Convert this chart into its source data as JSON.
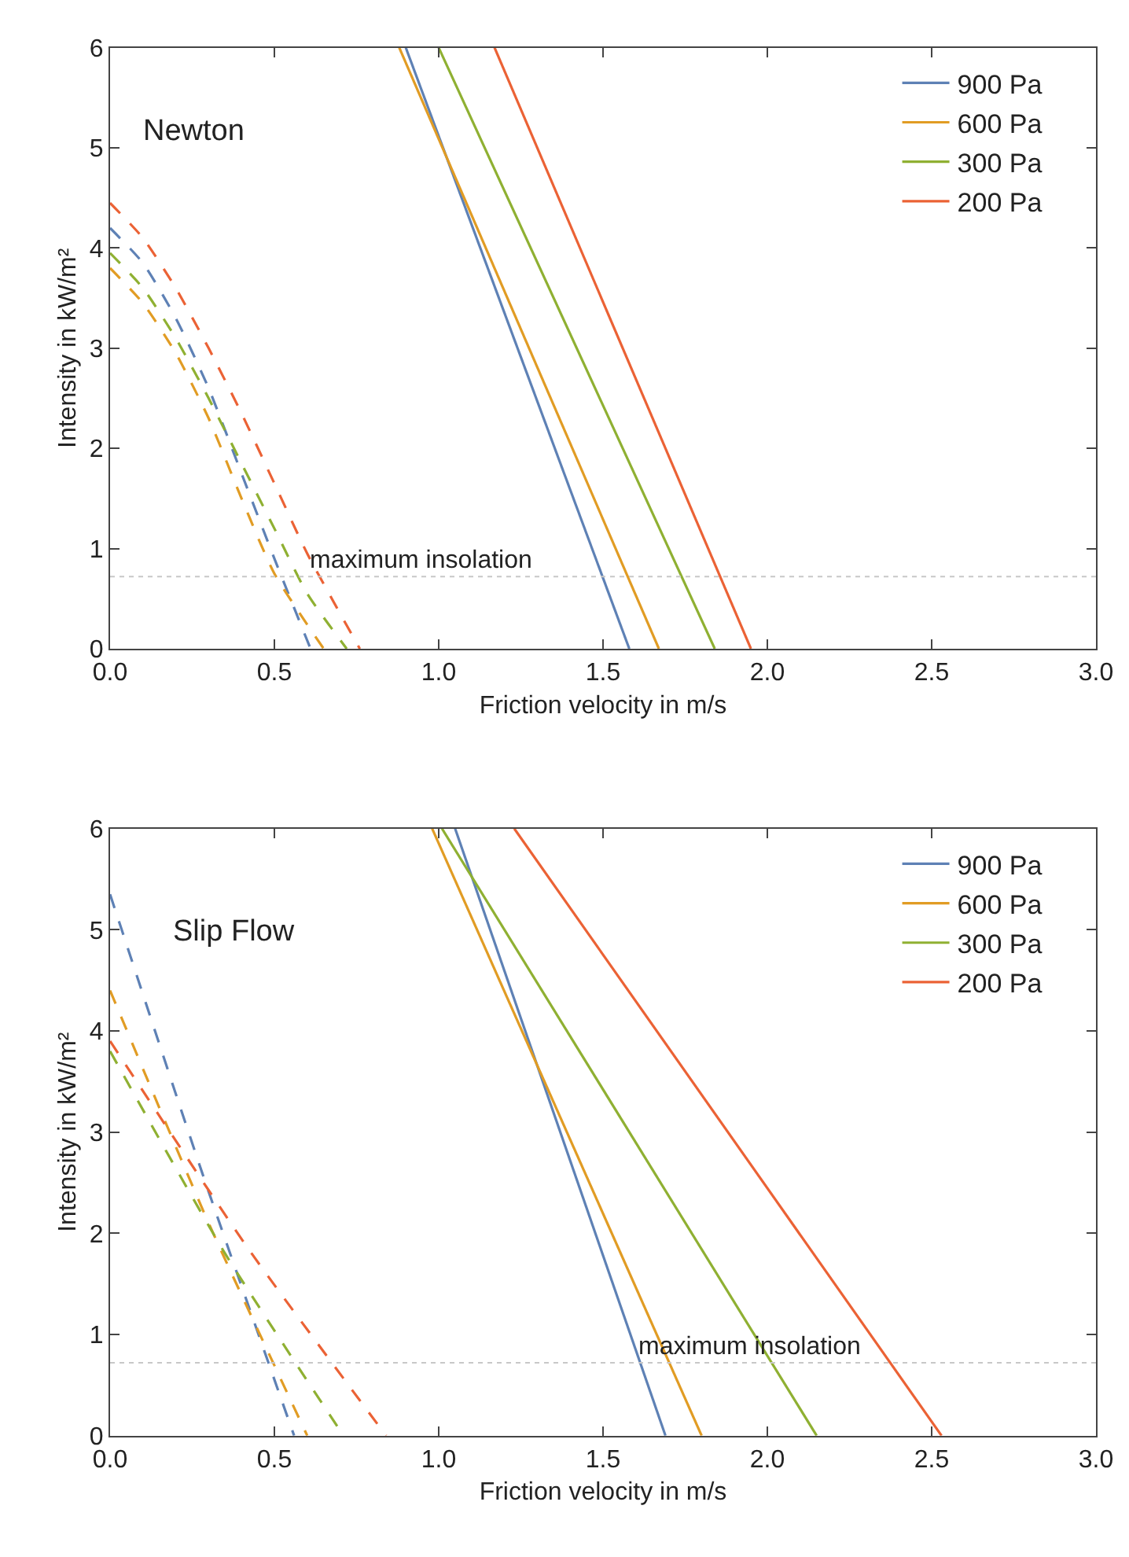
{
  "chart_data": [
    {
      "type": "line",
      "xlabel": "Friction velocity in m/s",
      "ylabel": "Intensity in kW/m²",
      "annotations": [
        "Newton",
        {
          "text": "maximum insolation",
          "x": 0.6,
          "y": 0.72
        }
      ],
      "xlim": [
        0,
        3
      ],
      "ylim": [
        0,
        6
      ],
      "xticks": [
        {
          "value": 0,
          "label": "0.0"
        },
        {
          "value": 0.5,
          "label": "0.5"
        },
        {
          "value": 1,
          "label": "1.0"
        },
        {
          "value": 1.5,
          "label": "1.5"
        },
        {
          "value": 2,
          "label": "2.0"
        },
        {
          "value": 2.5,
          "label": "2.5"
        },
        {
          "value": 3,
          "label": "3.0"
        }
      ],
      "yticks": [
        0,
        1,
        2,
        3,
        4,
        5,
        6
      ],
      "legend": "top right",
      "marker": "none",
      "ref_lines": [
        {
          "axis": "y",
          "value": 0.72,
          "color": "#c8c8c8",
          "line_style": "dotted"
        }
      ],
      "series": [
        {
          "name": "900 Pa",
          "color": "#5e81b5",
          "line_style": "solid",
          "x": [
            0.9,
            1.58
          ],
          "values": [
            6,
            0
          ]
        },
        {
          "name": "600 Pa",
          "color": "#e19c24",
          "line_style": "solid",
          "x": [
            0.88,
            1.67
          ],
          "values": [
            6,
            0
          ]
        },
        {
          "name": "300 Pa",
          "color": "#8fb032",
          "line_style": "solid",
          "x": [
            1.0,
            1.84
          ],
          "values": [
            6,
            0
          ]
        },
        {
          "name": "200 Pa",
          "color": "#eb6235",
          "line_style": "solid",
          "x": [
            1.17,
            1.95
          ],
          "values": [
            6,
            0
          ]
        },
        {
          "color": "#5e81b5",
          "line_style": "dashed",
          "x": [
            0,
            0.1,
            0.2,
            0.3,
            0.4,
            0.5,
            0.61
          ],
          "values": [
            4.2,
            3.85,
            3.3,
            2.6,
            1.75,
            0.9,
            0
          ]
        },
        {
          "color": "#e19c24",
          "line_style": "dashed",
          "x": [
            0,
            0.1,
            0.2,
            0.3,
            0.4,
            0.5,
            0.65
          ],
          "values": [
            3.8,
            3.45,
            2.95,
            2.3,
            1.5,
            0.75,
            0
          ]
        },
        {
          "color": "#8fb032",
          "line_style": "dashed",
          "x": [
            0,
            0.1,
            0.2,
            0.3,
            0.4,
            0.5,
            0.6,
            0.72
          ],
          "values": [
            3.95,
            3.6,
            3.1,
            2.5,
            1.85,
            1.2,
            0.55,
            0
          ]
        },
        {
          "color": "#eb6235",
          "line_style": "dashed",
          "x": [
            0,
            0.1,
            0.2,
            0.3,
            0.4,
            0.5,
            0.6,
            0.76
          ],
          "values": [
            4.45,
            4.1,
            3.6,
            3.0,
            2.35,
            1.65,
            0.95,
            0
          ]
        }
      ]
    },
    {
      "type": "line",
      "xlabel": "Friction velocity in m/s",
      "ylabel": "Intensity in kW/m²",
      "annotations": [
        "Slip Flow",
        {
          "text": "maximum insolation",
          "x": 1.6,
          "y": 0.72
        }
      ],
      "xlim": [
        0,
        3
      ],
      "ylim": [
        0,
        6
      ],
      "xticks": [
        {
          "value": 0,
          "label": "0.0"
        },
        {
          "value": 0.5,
          "label": "0.5"
        },
        {
          "value": 1,
          "label": "1.0"
        },
        {
          "value": 1.5,
          "label": "1.5"
        },
        {
          "value": 2,
          "label": "2.0"
        },
        {
          "value": 2.5,
          "label": "2.5"
        },
        {
          "value": 3,
          "label": "3.0"
        }
      ],
      "yticks": [
        0,
        1,
        2,
        3,
        4,
        5,
        6
      ],
      "legend": "top right",
      "marker": "none",
      "ref_lines": [
        {
          "axis": "y",
          "value": 0.72,
          "color": "#c8c8c8",
          "line_style": "dotted"
        }
      ],
      "series": [
        {
          "name": "900 Pa",
          "color": "#5e81b5",
          "line_style": "solid",
          "x": [
            1.05,
            1.69
          ],
          "values": [
            6,
            0
          ]
        },
        {
          "name": "600 Pa",
          "color": "#e19c24",
          "line_style": "solid",
          "x": [
            0.98,
            1.8
          ],
          "values": [
            6,
            0
          ]
        },
        {
          "name": "300 Pa",
          "color": "#8fb032",
          "line_style": "solid",
          "x": [
            1.01,
            2.15
          ],
          "values": [
            6,
            0
          ]
        },
        {
          "name": "200 Pa",
          "color": "#eb6235",
          "line_style": "solid",
          "x": [
            1.23,
            2.53
          ],
          "values": [
            6,
            0
          ]
        },
        {
          "color": "#5e81b5",
          "line_style": "dashed",
          "x": [
            0,
            0.28,
            0.56
          ],
          "values": [
            5.35,
            2.6,
            0
          ]
        },
        {
          "color": "#e19c24",
          "line_style": "dashed",
          "x": [
            0,
            0.3,
            0.6
          ],
          "values": [
            4.4,
            2.1,
            0
          ]
        },
        {
          "color": "#8fb032",
          "line_style": "dashed",
          "x": [
            0,
            0.35,
            0.71
          ],
          "values": [
            3.8,
            1.8,
            0
          ]
        },
        {
          "color": "#eb6235",
          "line_style": "dashed",
          "x": [
            0,
            0.42,
            0.84
          ],
          "values": [
            3.9,
            1.85,
            0
          ]
        }
      ]
    }
  ]
}
